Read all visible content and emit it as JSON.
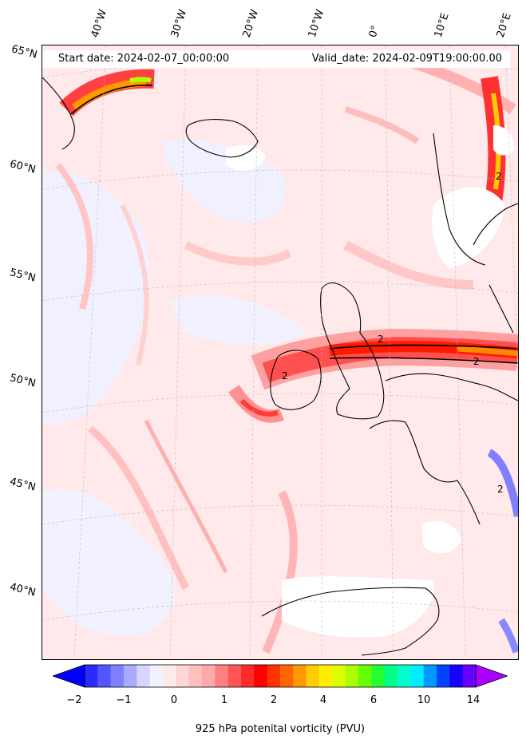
{
  "header": {
    "start_date": "Start date: 2024-02-07_00:00:00",
    "valid_date": "Valid_date: 2024-02-09T19:00:00.00"
  },
  "longitude_labels": [
    "40°W",
    "30°W",
    "20°W",
    "10°W",
    "0°",
    "10°E",
    "20°E"
  ],
  "latitude_labels": [
    "65°N",
    "60°N",
    "55°N",
    "50°N",
    "45°N",
    "40°N"
  ],
  "contour_labels": [
    "2",
    "2",
    "2",
    "2",
    "2"
  ],
  "colorbar": {
    "label": "925 hPa potenital vorticity (PVU)",
    "ticks": [
      "−2",
      "−1",
      "0",
      "1",
      "2",
      "4",
      "6",
      "10",
      "14"
    ],
    "colors": [
      "#0000ff",
      "#2b2bff",
      "#5555ff",
      "#8080ff",
      "#aaaaff",
      "#d5d5ff",
      "#f1f1ff",
      "#ffeaea",
      "#ffd5d5",
      "#ffbfbf",
      "#ffaaaa",
      "#ff8080",
      "#ff5555",
      "#ff2b2b",
      "#ff0000",
      "#ff3300",
      "#ff6600",
      "#ff9900",
      "#ffcc00",
      "#ffee00",
      "#ddff00",
      "#aaff00",
      "#66ff00",
      "#22ff33",
      "#00ff88",
      "#00ffcc",
      "#00eeff",
      "#0099ff",
      "#0044ff",
      "#1a00ff",
      "#6600ff",
      "#aa00ff"
    ]
  }
}
